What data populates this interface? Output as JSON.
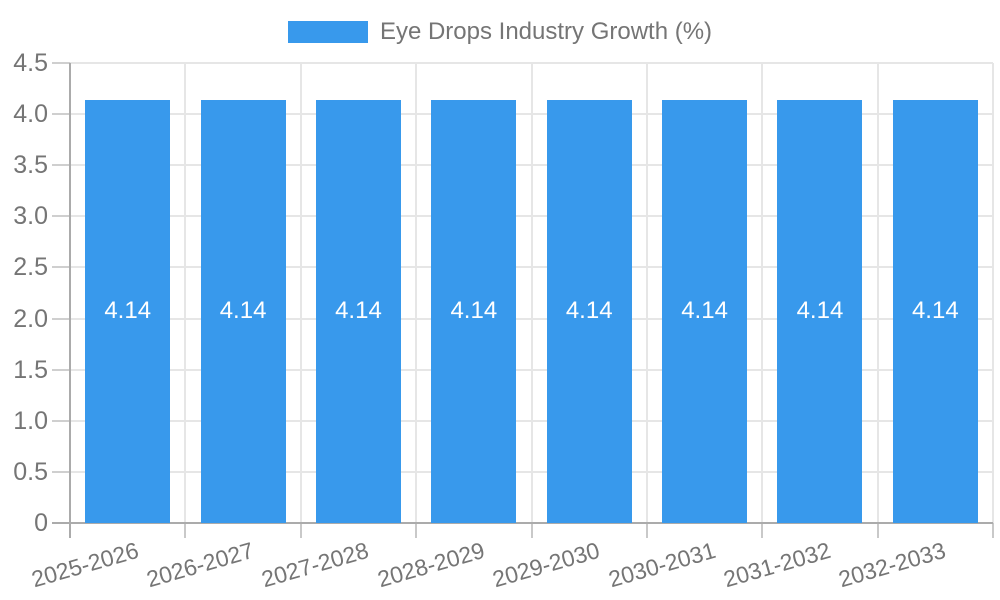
{
  "legend": {
    "label": "Eye Drops Industry Growth (%)"
  },
  "chart_data": {
    "type": "bar",
    "title": "",
    "legend_position": "top",
    "categories": [
      "2025-2026",
      "2026-2027",
      "2027-2028",
      "2028-2029",
      "2029-2030",
      "2030-2031",
      "2031-2032",
      "2032-2033"
    ],
    "series": [
      {
        "name": "Eye Drops Industry Growth (%)",
        "values": [
          4.14,
          4.14,
          4.14,
          4.14,
          4.14,
          4.14,
          4.14,
          4.14
        ]
      }
    ],
    "bar_value_labels": [
      "4.14",
      "4.14",
      "4.14",
      "4.14",
      "4.14",
      "4.14",
      "4.14",
      "4.14"
    ],
    "xlabel": "",
    "ylabel": "",
    "ylim": [
      0,
      4.5
    ],
    "ytick_step": 0.5,
    "ytick_labels": [
      "0",
      "0.5",
      "1.0",
      "1.5",
      "2.0",
      "2.5",
      "3.0",
      "3.5",
      "4.0",
      "4.5"
    ],
    "grid": true,
    "x_label_rotation_deg": -16
  },
  "colors": {
    "bar": "#3899EC",
    "grid": "#E6E6E6",
    "axis": "#ABABAB",
    "tick": "#C9C9C9",
    "text": "#757575",
    "bar_label": "#FFFFFF"
  }
}
